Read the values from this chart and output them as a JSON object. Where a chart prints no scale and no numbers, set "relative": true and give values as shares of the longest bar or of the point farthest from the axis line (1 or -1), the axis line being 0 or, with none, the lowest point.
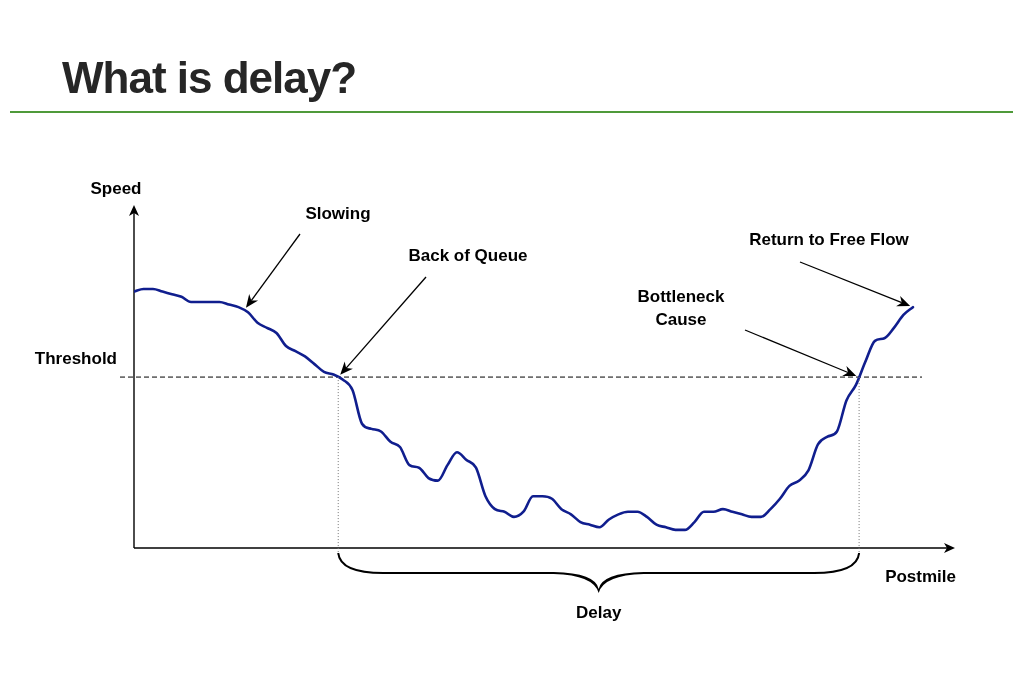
{
  "chart_data": {
    "type": "line",
    "title": "What is delay?",
    "xlabel": "Postmile",
    "relative": true,
    "marker": "none",
    "line_style": "solid",
    "categories": [
      null,
      null,
      null,
      null,
      null,
      null,
      null,
      null,
      null,
      null,
      null,
      null,
      null,
      null,
      null,
      null,
      null,
      null,
      null,
      null,
      null,
      null,
      null,
      null,
      null,
      null,
      null,
      null,
      null,
      null,
      null,
      null,
      null,
      null,
      null,
      null,
      null,
      null,
      null,
      null,
      null,
      null,
      null,
      null,
      null,
      null,
      null,
      null,
      null,
      null,
      null,
      null,
      null,
      null,
      null,
      null,
      null,
      null,
      null,
      null,
      null,
      null,
      null,
      null,
      null,
      null,
      null,
      null,
      null,
      null,
      null,
      null,
      null,
      null,
      null,
      null,
      null,
      null,
      null,
      null,
      null,
      null,
      null
    ],
    "series": [
      {
        "color": "#101e8e",
        "values": [
          0.99,
          1.0,
          1.0,
          0.99,
          0.98,
          0.97,
          0.95,
          0.95,
          0.95,
          0.95,
          0.94,
          0.93,
          0.91,
          0.87,
          0.85,
          0.83,
          0.78,
          0.76,
          0.74,
          0.71,
          0.68,
          0.67,
          0.65,
          0.61,
          0.48,
          0.46,
          0.45,
          0.41,
          0.39,
          0.32,
          0.31,
          0.27,
          0.26,
          0.32,
          0.37,
          0.34,
          0.31,
          0.2,
          0.15,
          0.14,
          0.12,
          0.14,
          0.2,
          0.2,
          0.19,
          0.15,
          0.13,
          0.1,
          0.09,
          0.08,
          0.11,
          0.13,
          0.14,
          0.14,
          0.12,
          0.09,
          0.08,
          0.07,
          0.07,
          0.1,
          0.14,
          0.14,
          0.15,
          0.14,
          0.13,
          0.12,
          0.12,
          0.15,
          0.19,
          0.24,
          0.26,
          0.3,
          0.4,
          0.43,
          0.45,
          0.57,
          0.63,
          0.72,
          0.8,
          0.81,
          0.85,
          0.9,
          0.93
        ]
      }
    ],
    "ref_lines": [
      {
        "axis": "y",
        "value": 0.66,
        "label": "Threshold",
        "line_style": "dashed",
        "color": "#000000"
      }
    ],
    "annotations": [
      "Speed",
      "Slowing",
      "Back of Queue",
      "Bottleneck Cause",
      "Return to Free Flow",
      "Delay"
    ]
  }
}
